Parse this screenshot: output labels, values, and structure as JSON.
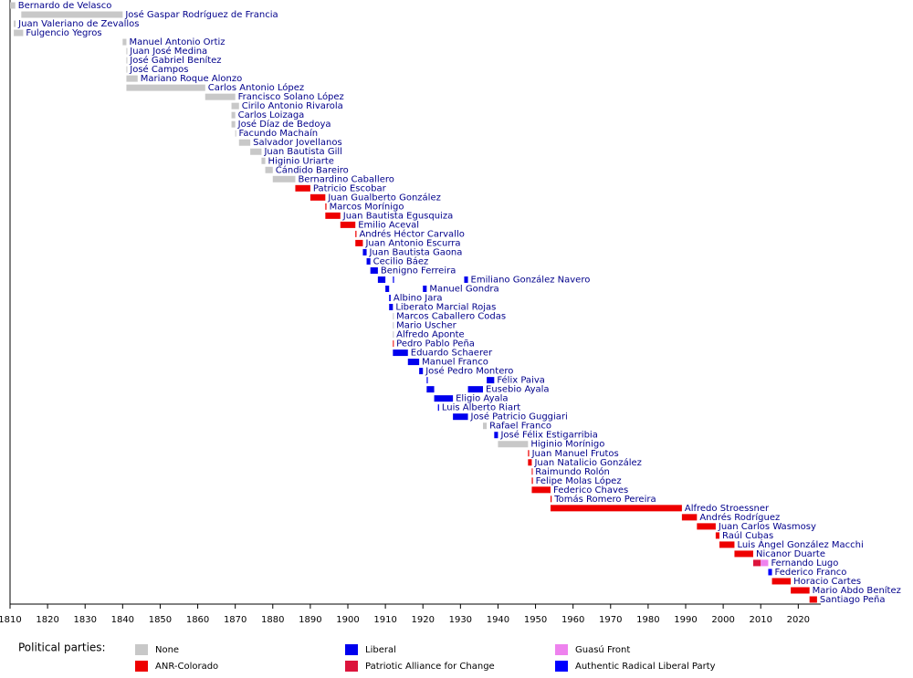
{
  "chart_data": {
    "type": "timeline",
    "xlim": [
      1810,
      2026
    ],
    "xticks": [
      1810,
      1820,
      1830,
      1840,
      1850,
      1860,
      1870,
      1880,
      1890,
      1900,
      1910,
      1920,
      1930,
      1940,
      1950,
      1960,
      1970,
      1980,
      1990,
      2000,
      2010,
      2020
    ],
    "legend_title": "Political parties:",
    "parties": [
      {
        "name": "None",
        "color": "#c8c8c8"
      },
      {
        "name": "ANR-Colorado",
        "color": "#ee0000"
      },
      {
        "name": "Liberal",
        "color": "#0000ee"
      },
      {
        "name": "Patriotic Alliance for Change",
        "color": "#dc143c"
      },
      {
        "name": "Guasú Front",
        "color": "#ee82ee"
      },
      {
        "name": "Authentic Radical Liberal Party",
        "color": "#0000ff"
      }
    ],
    "rows": [
      {
        "name": "Bernardo de Velasco",
        "spans": [
          [
            1810,
            1811.4,
            0
          ]
        ]
      },
      {
        "name": "José Gaspar Rodríguez de Francia",
        "spans": [
          [
            1813,
            1840,
            0
          ]
        ]
      },
      {
        "name": "Juan Valeriano de Zevallos",
        "spans": [
          [
            1811,
            1811.5,
            0
          ]
        ]
      },
      {
        "name": "Fulgencio Yegros",
        "spans": [
          [
            1811,
            1813.5,
            0
          ]
        ]
      },
      {
        "name": "Manuel Antonio Ortiz",
        "spans": [
          [
            1840,
            1841,
            0
          ]
        ]
      },
      {
        "name": "Juan José Medina",
        "spans": [
          [
            1841,
            1841.2,
            0
          ]
        ]
      },
      {
        "name": "José Gabriel Benítez",
        "spans": [
          [
            1841,
            1841.2,
            0
          ]
        ]
      },
      {
        "name": "José Campos",
        "spans": [
          [
            1841,
            1841.2,
            0
          ]
        ]
      },
      {
        "name": "Mariano Roque Alonzo",
        "spans": [
          [
            1841,
            1844,
            0
          ]
        ]
      },
      {
        "name": "Carlos Antonio López",
        "spans": [
          [
            1841,
            1862,
            0
          ]
        ]
      },
      {
        "name": "Francisco Solano López",
        "spans": [
          [
            1862,
            1870,
            0
          ]
        ]
      },
      {
        "name": "Cirilo Antonio Rivarola",
        "spans": [
          [
            1869,
            1871,
            0
          ]
        ]
      },
      {
        "name": "Carlos Loizaga",
        "spans": [
          [
            1869,
            1870,
            0
          ]
        ]
      },
      {
        "name": "José Díaz de Bedoya",
        "spans": [
          [
            1869,
            1870,
            0
          ]
        ]
      },
      {
        "name": "Facundo Machaín",
        "spans": [
          [
            1870,
            1870.2,
            0
          ]
        ]
      },
      {
        "name": "Salvador Jovellanos",
        "spans": [
          [
            1871,
            1874,
            0
          ]
        ]
      },
      {
        "name": "Juan Bautista Gill",
        "spans": [
          [
            1874,
            1877,
            0
          ]
        ]
      },
      {
        "name": "Higinio Uriarte",
        "spans": [
          [
            1877,
            1878,
            0
          ]
        ]
      },
      {
        "name": "Cándido Bareiro",
        "spans": [
          [
            1878,
            1880,
            0
          ]
        ]
      },
      {
        "name": "Bernardino Caballero",
        "spans": [
          [
            1880,
            1886,
            0
          ]
        ]
      },
      {
        "name": "Patricio Escobar",
        "spans": [
          [
            1886,
            1890,
            1
          ]
        ]
      },
      {
        "name": "Juan Gualberto González",
        "spans": [
          [
            1890,
            1894,
            1
          ]
        ]
      },
      {
        "name": "Marcos Morínigo",
        "spans": [
          [
            1894,
            1894.3,
            1
          ]
        ]
      },
      {
        "name": "Juan Bautista Egusquiza",
        "spans": [
          [
            1894,
            1898,
            1
          ]
        ]
      },
      {
        "name": "Emilio Aceval",
        "spans": [
          [
            1898,
            1902,
            1
          ]
        ]
      },
      {
        "name": "Andrés Héctor Carvallo",
        "spans": [
          [
            1902,
            1902.3,
            1
          ]
        ]
      },
      {
        "name": "Juan Antonio Escurra",
        "spans": [
          [
            1902,
            1904,
            1
          ]
        ]
      },
      {
        "name": "Juan Bautista Gaona",
        "spans": [
          [
            1904,
            1905,
            2
          ]
        ]
      },
      {
        "name": "Cecilio Báez",
        "spans": [
          [
            1905,
            1906,
            2
          ]
        ]
      },
      {
        "name": "Benigno Ferreira",
        "spans": [
          [
            1906,
            1908,
            2
          ]
        ]
      },
      {
        "name": "Emiliano González Navero",
        "spans": [
          [
            1908,
            1910,
            2
          ],
          [
            1912,
            1912.3,
            2
          ],
          [
            1931,
            1932,
            2
          ]
        ]
      },
      {
        "name": "Manuel Gondra",
        "spans": [
          [
            1910,
            1911,
            2
          ],
          [
            1920,
            1921,
            2
          ]
        ]
      },
      {
        "name": "Albino Jara",
        "spans": [
          [
            1911,
            1911.4,
            2
          ]
        ]
      },
      {
        "name": "Liberato Marcial Rojas",
        "spans": [
          [
            1911,
            1912,
            2
          ]
        ]
      },
      {
        "name": "Marcos Caballero Codas",
        "spans": [
          [
            1912,
            1912.2,
            0
          ]
        ]
      },
      {
        "name": "Mario Uscher",
        "spans": [
          [
            1912,
            1912.2,
            0
          ]
        ]
      },
      {
        "name": "Alfredo Aponte",
        "spans": [
          [
            1912,
            1912.2,
            0
          ]
        ]
      },
      {
        "name": "Pedro Pablo Peña",
        "spans": [
          [
            1912,
            1912.2,
            1
          ]
        ]
      },
      {
        "name": "Eduardo Schaerer",
        "spans": [
          [
            1912,
            1916,
            2
          ]
        ]
      },
      {
        "name": "Manuel Franco",
        "spans": [
          [
            1916,
            1919,
            2
          ]
        ]
      },
      {
        "name": "José Pedro Montero",
        "spans": [
          [
            1919,
            1920,
            2
          ]
        ]
      },
      {
        "name": "Félix Paiva",
        "spans": [
          [
            1921,
            1921.3,
            2
          ],
          [
            1937,
            1939,
            2
          ]
        ]
      },
      {
        "name": "Eusebio Ayala",
        "spans": [
          [
            1921,
            1923,
            2
          ],
          [
            1932,
            1936,
            2
          ]
        ]
      },
      {
        "name": "Eligio Ayala",
        "spans": [
          [
            1923,
            1928,
            2
          ]
        ]
      },
      {
        "name": "Luis Alberto Riart",
        "spans": [
          [
            1924,
            1924.3,
            2
          ]
        ]
      },
      {
        "name": "José Patricio Guggiari",
        "spans": [
          [
            1928,
            1932,
            2
          ]
        ]
      },
      {
        "name": "Rafael Franco",
        "spans": [
          [
            1936,
            1937,
            0
          ]
        ]
      },
      {
        "name": "José Félix Estigarribia",
        "spans": [
          [
            1939,
            1940,
            2
          ]
        ]
      },
      {
        "name": "Higinio Morínigo",
        "spans": [
          [
            1940,
            1948,
            0
          ]
        ]
      },
      {
        "name": "Juan Manuel Frutos",
        "spans": [
          [
            1948,
            1948.3,
            1
          ]
        ]
      },
      {
        "name": "Juan Natalicio González",
        "spans": [
          [
            1948,
            1949,
            1
          ]
        ]
      },
      {
        "name": "Raimundo Rolón",
        "spans": [
          [
            1949,
            1949.2,
            1
          ]
        ]
      },
      {
        "name": "Felipe Molas López",
        "spans": [
          [
            1949,
            1949.3,
            1
          ]
        ]
      },
      {
        "name": "Federico Chaves",
        "spans": [
          [
            1949,
            1954,
            1
          ]
        ]
      },
      {
        "name": "Tomás Romero Pereira",
        "spans": [
          [
            1954,
            1954.3,
            1
          ]
        ]
      },
      {
        "name": "Alfredo Stroessner",
        "spans": [
          [
            1954,
            1989,
            1
          ]
        ]
      },
      {
        "name": "Andrés Rodríguez",
        "spans": [
          [
            1989,
            1993,
            1
          ]
        ]
      },
      {
        "name": "Juan Carlos Wasmosy",
        "spans": [
          [
            1993,
            1998,
            1
          ]
        ]
      },
      {
        "name": "Raúl Cubas",
        "spans": [
          [
            1998,
            1999,
            1
          ]
        ]
      },
      {
        "name": "Luis Ángel González Macchi",
        "spans": [
          [
            1999,
            2003,
            1
          ]
        ]
      },
      {
        "name": "Nicanor Duarte",
        "spans": [
          [
            2003,
            2008,
            1
          ]
        ]
      },
      {
        "name": "Fernando Lugo",
        "spans": [
          [
            2008,
            2010,
            3
          ],
          [
            2010,
            2012,
            4
          ]
        ]
      },
      {
        "name": "Federico Franco",
        "spans": [
          [
            2012,
            2013,
            5
          ]
        ]
      },
      {
        "name": "Horacio Cartes",
        "spans": [
          [
            2013,
            2018,
            1
          ]
        ]
      },
      {
        "name": "Mario Abdo Benítez",
        "spans": [
          [
            2018,
            2023,
            1
          ]
        ]
      },
      {
        "name": "Santiago Peña",
        "spans": [
          [
            2023,
            2025,
            1
          ]
        ]
      }
    ]
  }
}
